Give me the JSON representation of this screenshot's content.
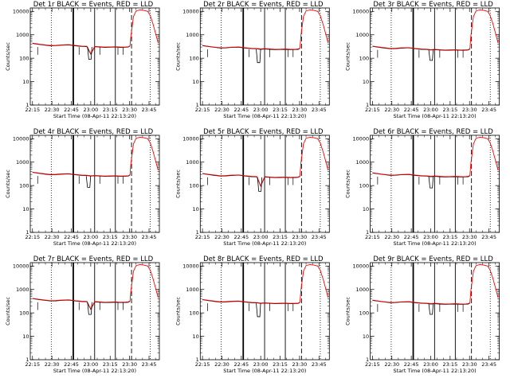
{
  "figure": {
    "panels": [
      {
        "title": "Det 1r BLACK = Events, RED = LLD"
      },
      {
        "title": "Det 2r BLACK = Events, RED = LLD"
      },
      {
        "title": "Det 3r BLACK = Events, RED = LLD"
      },
      {
        "title": "Det 4r BLACK = Events, RED = LLD"
      },
      {
        "title": "Det 5r BLACK = Events, RED = LLD"
      },
      {
        "title": "Det 6r BLACK = Events, RED = LLD"
      },
      {
        "title": "Det 7r BLACK = Events, RED = LLD"
      },
      {
        "title": "Det 8r BLACK = Events, RED = LLD"
      },
      {
        "title": "Det 9r BLACK = Events, RED = LLD"
      }
    ]
  },
  "chart_data": {
    "type": "line",
    "layout": "3x3 small multiples",
    "xlabel": "Start Time (08-Apr-11 22:13:20)",
    "ylabel": "Counts/sec",
    "x_tick_labels": [
      "22:15",
      "22:30",
      "22:45",
      "23:00",
      "23:15",
      "23:30",
      "23:45"
    ],
    "x_tick_minutes": [
      0,
      15,
      30,
      45,
      60,
      75,
      90
    ],
    "x_range_minutes": [
      -1.7,
      98
    ],
    "y_scale": "log",
    "y_tick_labels": [
      "1",
      "10",
      "100",
      "1000",
      "10000"
    ],
    "y_range": [
      1,
      14000
    ],
    "colors": {
      "events": "#000000",
      "lld": "#ff0000"
    },
    "vlines": [
      {
        "x": 14.5,
        "style": "dotted"
      },
      {
        "x": 31.5,
        "style": "solid-thick"
      },
      {
        "x": 48.0,
        "style": "solid"
      },
      {
        "x": 64.0,
        "style": "solid"
      },
      {
        "x": 76.5,
        "style": "dashed"
      },
      {
        "x": 91.0,
        "style": "dotted"
      }
    ],
    "series": [
      {
        "name": "Events",
        "x": [
          0,
          5,
          10,
          14,
          18,
          22,
          28,
          33,
          38,
          42,
          45,
          48,
          52,
          56,
          60,
          64,
          68,
          72,
          74,
          75.3
        ],
        "y": [
          430,
          390,
          360,
          340,
          345,
          360,
          370,
          340,
          320,
          315,
          300,
          310,
          300,
          290,
          295,
          300,
          290,
          295,
          300,
          330
        ]
      },
      {
        "name": "LLD",
        "x": [
          0,
          5,
          10,
          14,
          18,
          22,
          28,
          33,
          38,
          42,
          45,
          48,
          52,
          56,
          60,
          64,
          68,
          72,
          74,
          75.3,
          76,
          78,
          80,
          83,
          86,
          89,
          91,
          93,
          95,
          97
        ],
        "y": [
          440,
          400,
          370,
          350,
          355,
          370,
          380,
          350,
          330,
          325,
          310,
          320,
          310,
          300,
          305,
          310,
          300,
          305,
          310,
          340,
          900,
          6000,
          10500,
          11500,
          11000,
          10000,
          6500,
          3000,
          1200,
          450
        ]
      }
    ]
  }
}
